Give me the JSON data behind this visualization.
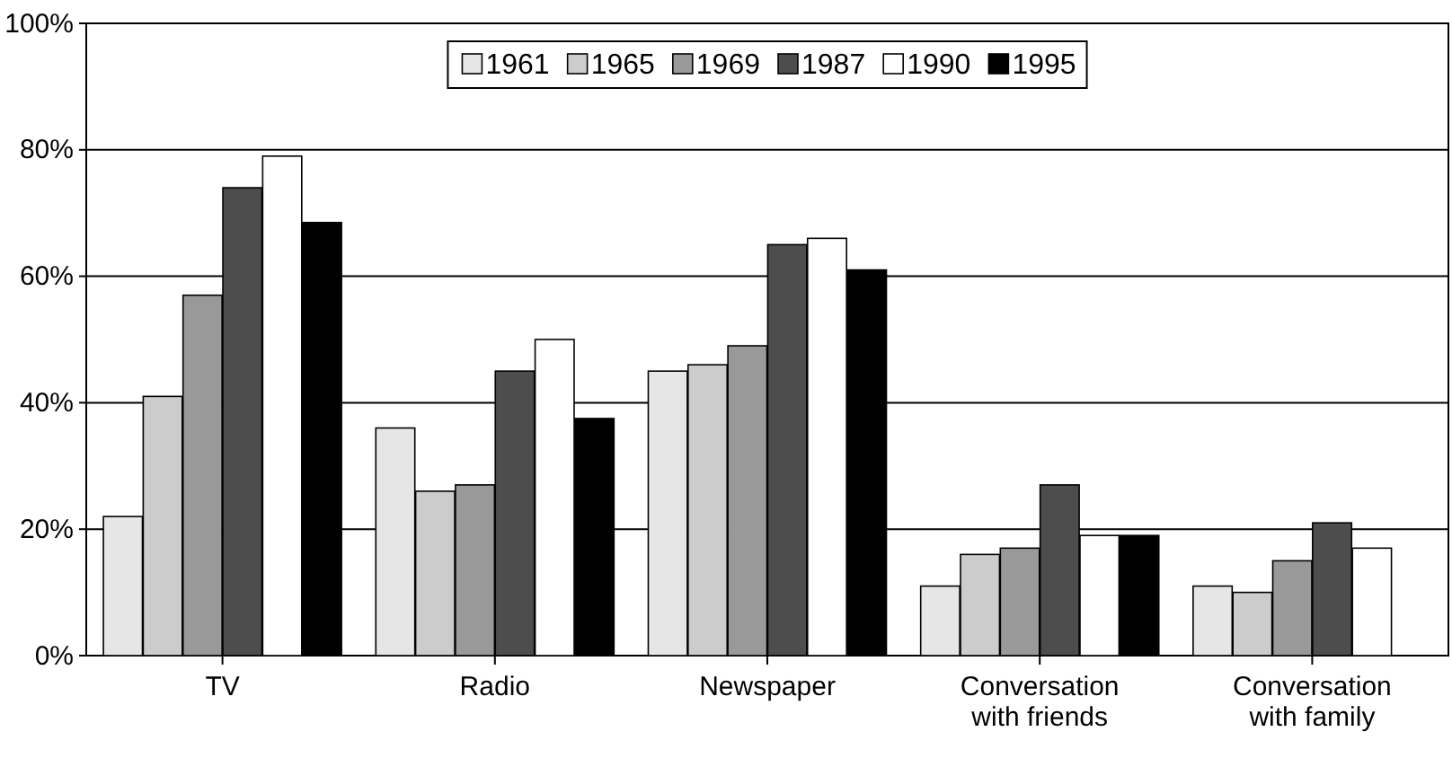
{
  "chart_data": {
    "type": "bar",
    "categories": [
      "TV",
      "Radio",
      "Newspaper",
      "Conversation\nwith friends",
      "Conversation\nwith family"
    ],
    "series": [
      {
        "name": "1961",
        "color": "#e6e6e6",
        "values": [
          22,
          36,
          45,
          11,
          11
        ]
      },
      {
        "name": "1965",
        "color": "#cccccc",
        "values": [
          41,
          26,
          46,
          16,
          10
        ]
      },
      {
        "name": "1969",
        "color": "#999999",
        "values": [
          57,
          27,
          49,
          17,
          15
        ]
      },
      {
        "name": "1987",
        "color": "#4d4d4d",
        "values": [
          74,
          45,
          65,
          27,
          21
        ]
      },
      {
        "name": "1990",
        "color": "#ffffff",
        "values": [
          79,
          50,
          66,
          19,
          17
        ]
      },
      {
        "name": "1995",
        "color": "#000000",
        "values": [
          68.5,
          37.5,
          61,
          19,
          null
        ]
      }
    ],
    "ylim": [
      0,
      100
    ],
    "yticks": [
      {
        "value": 0,
        "label": "0%"
      },
      {
        "value": 20,
        "label": "20%"
      },
      {
        "value": 40,
        "label": "40%"
      },
      {
        "value": 60,
        "label": "60%"
      },
      {
        "value": 80,
        "label": "80%"
      },
      {
        "value": 100,
        "label": "100%"
      }
    ],
    "grid": "y",
    "legend": "top"
  }
}
